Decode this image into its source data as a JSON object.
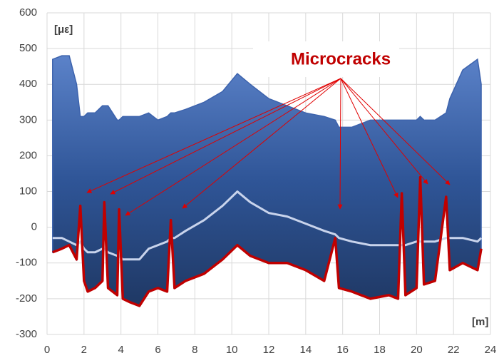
{
  "chart_data": {
    "type": "line",
    "y_label": "[με]",
    "x_label": "[m]",
    "annotation": "Microcracks",
    "xlim": [
      0,
      24
    ],
    "xticks": [
      0,
      2,
      4,
      6,
      8,
      10,
      12,
      14,
      16,
      18,
      20,
      22,
      24
    ],
    "ylim": [
      -300,
      600
    ],
    "yticks": [
      -300,
      -200,
      -100,
      0,
      100,
      200,
      300,
      400,
      500,
      600
    ],
    "grid": true,
    "band": [
      0,
      2
    ],
    "x": [
      0.3,
      0.8,
      1.2,
      1.6,
      1.8,
      2.0,
      2.2,
      2.6,
      3.0,
      3.1,
      3.3,
      3.8,
      3.9,
      4.1,
      4.5,
      5.0,
      5.5,
      6.0,
      6.5,
      6.7,
      6.9,
      7.5,
      8.5,
      9.5,
      10.3,
      11,
      12,
      13,
      14,
      15,
      15.6,
      15.8,
      16.5,
      17.5,
      18.5,
      19.0,
      19.2,
      19.4,
      20.0,
      20.2,
      20.4,
      21.0,
      21.6,
      21.8,
      22.5,
      23.3,
      23.5
    ],
    "series": [
      {
        "color": "#3d63ad",
        "values": [
          470,
          480,
          480,
          400,
          310,
          310,
          320,
          320,
          340,
          340,
          340,
          300,
          300,
          310,
          310,
          310,
          320,
          300,
          310,
          320,
          320,
          330,
          350,
          380,
          430,
          400,
          360,
          340,
          320,
          310,
          300,
          280,
          280,
          300,
          300,
          300,
          300,
          300,
          300,
          310,
          300,
          300,
          320,
          360,
          440,
          470,
          400
        ]
      },
      {
        "color": "#c9d4ec",
        "values": [
          -30,
          -30,
          -40,
          -50,
          -40,
          -60,
          -70,
          -70,
          -60,
          -60,
          -70,
          -80,
          -80,
          -90,
          -90,
          -90,
          -60,
          -50,
          -40,
          -30,
          -30,
          -10,
          20,
          60,
          100,
          70,
          40,
          30,
          10,
          -10,
          -20,
          -30,
          -40,
          -50,
          -50,
          -50,
          -50,
          -50,
          -40,
          -40,
          -40,
          -40,
          -30,
          -30,
          -30,
          -40,
          -30
        ]
      },
      {
        "color": "#c00000",
        "values": [
          -70,
          -60,
          -50,
          -90,
          60,
          -150,
          -180,
          -170,
          -150,
          70,
          -170,
          -190,
          50,
          -200,
          -210,
          -220,
          -180,
          -170,
          -180,
          20,
          -170,
          -150,
          -130,
          -90,
          -50,
          -80,
          -100,
          -100,
          -120,
          -150,
          -30,
          -170,
          -180,
          -200,
          -190,
          -200,
          95,
          -190,
          -170,
          140,
          -160,
          -150,
          85,
          -120,
          -100,
          -120,
          -60
        ]
      }
    ]
  }
}
